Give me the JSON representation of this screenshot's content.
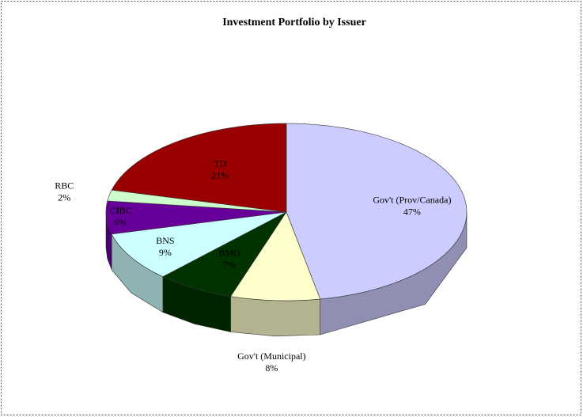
{
  "chart_data": {
    "type": "pie",
    "title": "Investment Portfolio by Issuer",
    "categories": [
      "Gov't (Prov/Canada)",
      "Gov't (Municipal)",
      "BMO",
      "BNS",
      "CIBC",
      "RBC",
      "TD"
    ],
    "values": [
      47,
      8,
      7,
      9,
      6,
      2,
      21
    ],
    "value_labels": [
      "47%",
      "8%",
      "7%",
      "9%",
      "6%",
      "2%",
      "21%"
    ],
    "colors": [
      "#ccccff",
      "#ffffcc",
      "#003300",
      "#ccffff",
      "#660099",
      "#ccffcc",
      "#990000"
    ],
    "legend": false
  }
}
